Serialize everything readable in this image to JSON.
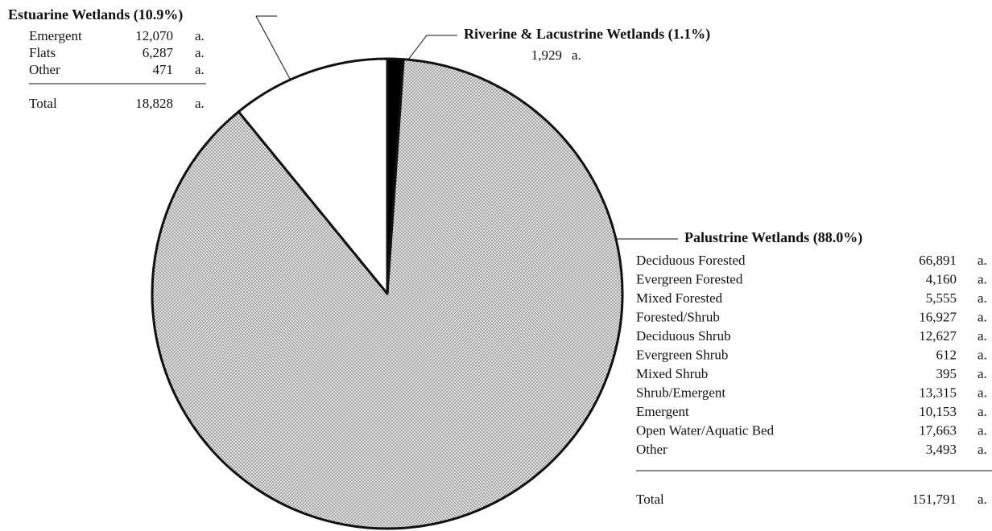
{
  "chart_data": {
    "type": "pie",
    "categories": [
      "Riverine & Lacustrine Wetlands",
      "Palustrine Wetlands",
      "Estuarine Wetlands"
    ],
    "values": [
      1.1,
      88.0,
      10.9
    ],
    "value_labels": [
      "(1.1%)",
      "(88.0%)",
      "(10.9%)"
    ],
    "colors": [
      "#000000",
      "#e4e4e4",
      "#ffffff"
    ],
    "stippled": [
      false,
      true,
      false
    ],
    "breakdowns": [
      {
        "unit": "a.",
        "rows": [
          {
            "value": "1,929"
          }
        ]
      },
      {
        "unit": "a.",
        "rows": [
          {
            "name": "Deciduous Forested",
            "value": "66,891"
          },
          {
            "name": "Evergreen Forested",
            "value": "4,160"
          },
          {
            "name": "Mixed Forested",
            "value": "5,555"
          },
          {
            "name": "Forested/Shrub",
            "value": "16,927"
          },
          {
            "name": "Deciduous Shrub",
            "value": "12,627"
          },
          {
            "name": "Evergreen Shrub",
            "value": "612"
          },
          {
            "name": "Mixed Shrub",
            "value": "395"
          },
          {
            "name": "Shrub/Emergent",
            "value": "13,315"
          },
          {
            "name": "Emergent",
            "value": "10,153"
          },
          {
            "name": "Open Water/Aquatic Bed",
            "value": "17,663"
          },
          {
            "name": "Other",
            "value": "3,493"
          }
        ],
        "total": {
          "name": "Total",
          "value": "151,791"
        }
      },
      {
        "unit": "a.",
        "rows": [
          {
            "name": "Emergent",
            "value": "12,070"
          },
          {
            "name": "Flats",
            "value": "6,287"
          },
          {
            "name": "Other",
            "value": "471"
          }
        ],
        "total": {
          "name": "Total",
          "value": "18,828"
        }
      }
    ]
  }
}
